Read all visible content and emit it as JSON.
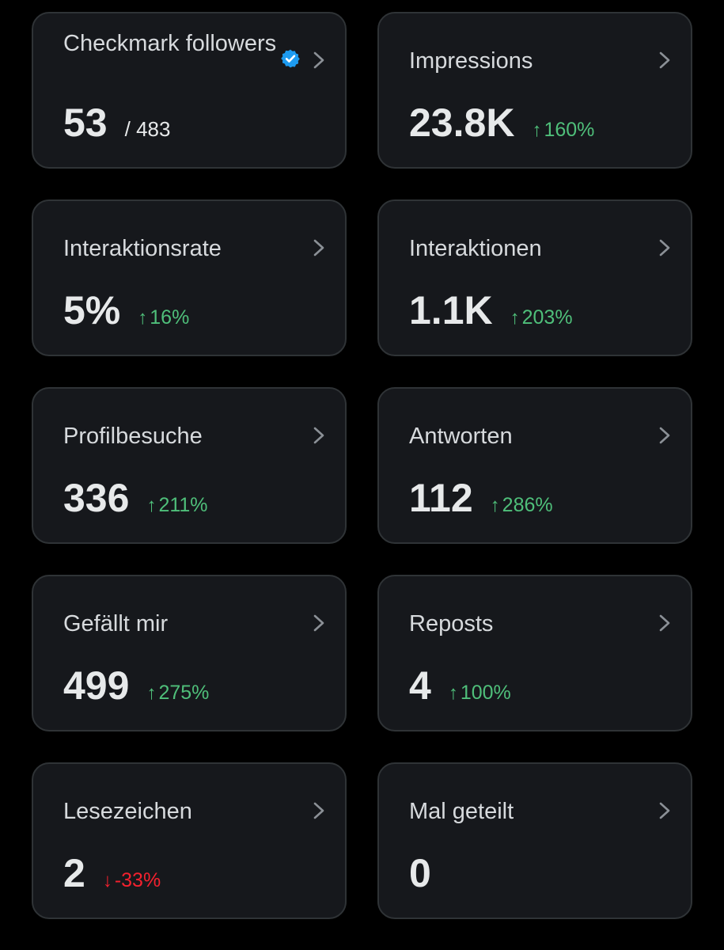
{
  "cards": [
    {
      "label": "Checkmark followers",
      "value": "53",
      "denominator": "/ 483",
      "change": "",
      "direction": "none",
      "verified_icon": "verified-badge-icon",
      "badge_color": "#1d9bf0"
    },
    {
      "label": "Impressions",
      "value": "23.8K",
      "change": "160%",
      "direction": "up"
    },
    {
      "label": "Interaktionsrate",
      "value": "5%",
      "change": "16%",
      "direction": "up"
    },
    {
      "label": "Interaktionen",
      "value": "1.1K",
      "change": "203%",
      "direction": "up"
    },
    {
      "label": "Profilbesuche",
      "value": "336",
      "change": "211%",
      "direction": "up"
    },
    {
      "label": "Antworten",
      "value": "112",
      "change": "286%",
      "direction": "up"
    },
    {
      "label": "Gefällt mir",
      "value": "499",
      "change": "275%",
      "direction": "up"
    },
    {
      "label": "Reposts",
      "value": "4",
      "change": "100%",
      "direction": "up"
    },
    {
      "label": "Lesezeichen",
      "value": "2",
      "change": "-33%",
      "direction": "down"
    },
    {
      "label": "Mal geteilt",
      "value": "0",
      "change": "",
      "direction": "none"
    }
  ],
  "icons": {
    "chevron": "chevron-right-icon",
    "up": "arrow-up-icon",
    "down": "arrow-down-icon"
  },
  "colors": {
    "background": "#000000",
    "card": "#16181c",
    "border": "#2f3336",
    "positive": "#4fbf7a",
    "negative": "#f4212e"
  }
}
